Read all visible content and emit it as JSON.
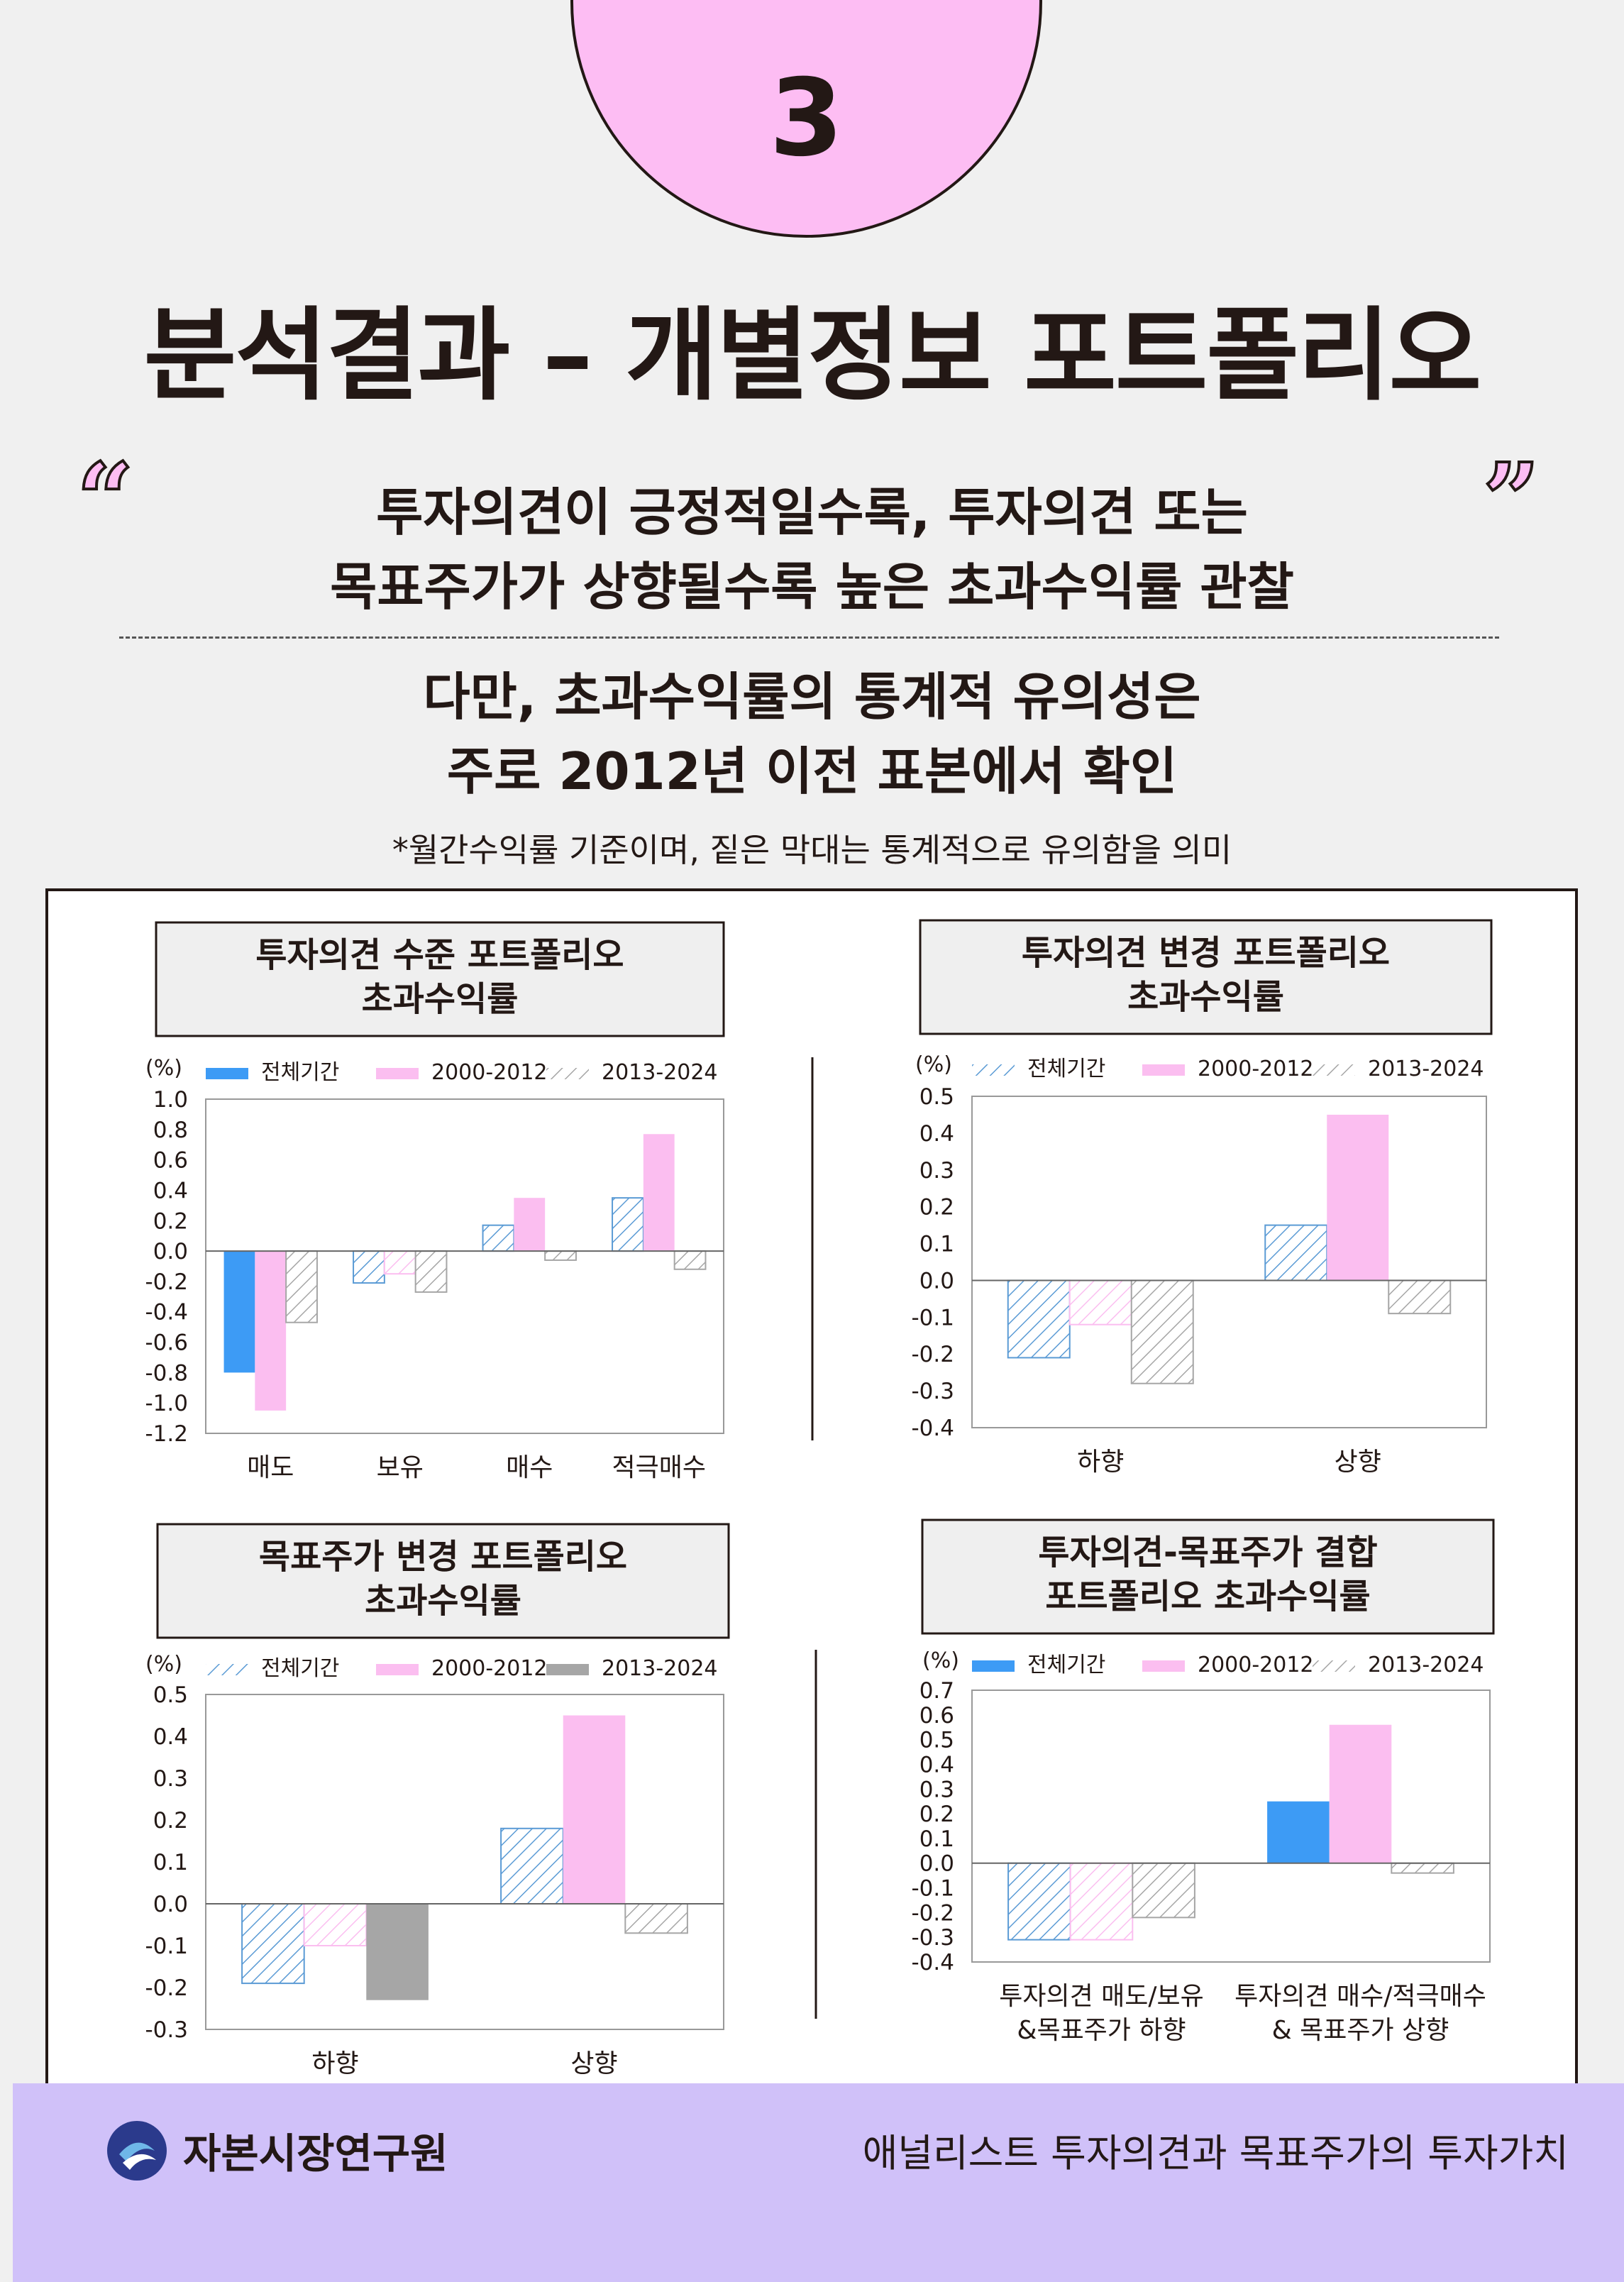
{
  "section_number": "3",
  "page_title": "분석결과 – 개별정보 포트폴리오",
  "quote_open": "“",
  "quote_close": "”",
  "headline": {
    "line1": "투자의견이 긍정적일수록, 투자의견 또는",
    "line2": "목표주가가 상향될수록 높은 초과수익률 관찰"
  },
  "subheadline": {
    "line1": "다만, 초과수익률의 통계적 유의성은",
    "line2": "주로 2012년 이전 표본에서 확인"
  },
  "note": "*월간수익률 기준이며, 짙은 막대는 통계적으로 유의함을 의미",
  "colors": {
    "blue": "#3d9bf5",
    "pink": "#fbbef0",
    "gray": "#a6a6a6",
    "hatch_blue": "#5b9bd5",
    "hatch_gray": "#a6a6a6",
    "hatch_pink": "#fbbef0",
    "footer": "#d0c1f9",
    "circle": "#fdbdf3"
  },
  "chart_data": [
    {
      "type": "bar",
      "title": "투자의견 수준 포트폴리오 초과수익률",
      "title_lines": [
        "투자의견 수준 포트폴리오",
        "초과수익률"
      ],
      "unit": "(%)",
      "categories": [
        "매도",
        "보유",
        "매수",
        "적극매수"
      ],
      "ylim": [
        -1.2,
        1.0
      ],
      "yticks": [
        "1.0",
        "0.8",
        "0.6",
        "0.4",
        "0.2",
        "0.0",
        "-0.2",
        "-0.4",
        "-0.6",
        "-0.8",
        "-1.0",
        "-1.2"
      ],
      "legend": [
        "전체기간",
        "2000-2012",
        "2013-2024"
      ],
      "legend_styles": [
        "blue",
        "pink",
        "hatch_gray"
      ],
      "series": [
        {
          "name": "전체기간",
          "values": [
            -0.8,
            -0.21,
            0.17,
            0.35
          ],
          "styles": [
            "blue",
            "hatch_blue",
            "hatch_blue",
            "hatch_blue"
          ]
        },
        {
          "name": "2000-2012",
          "values": [
            -1.05,
            -0.15,
            0.35,
            0.77
          ],
          "styles": [
            "pink",
            "hatch_pink",
            "pink",
            "pink"
          ]
        },
        {
          "name": "2013-2024",
          "values": [
            -0.47,
            -0.27,
            -0.06,
            -0.12
          ],
          "styles": [
            "hatch_gray",
            "hatch_gray",
            "hatch_gray",
            "hatch_gray"
          ]
        }
      ]
    },
    {
      "type": "bar",
      "title": "투자의견 변경 포트폴리오 초과수익률",
      "title_lines": [
        "투자의견 변경 포트폴리오",
        "초과수익률"
      ],
      "unit": "(%)",
      "categories": [
        "하향",
        "상향"
      ],
      "ylim": [
        -0.4,
        0.5
      ],
      "yticks": [
        "0.5",
        "0.4",
        "0.3",
        "0.2",
        "0.1",
        "0.0",
        "-0.1",
        "-0.2",
        "-0.3",
        "-0.4"
      ],
      "legend": [
        "전체기간",
        "2000-2012",
        "2013-2024"
      ],
      "legend_styles": [
        "hatch_blue",
        "pink",
        "hatch_gray"
      ],
      "series": [
        {
          "name": "전체기간",
          "values": [
            -0.21,
            0.15
          ],
          "styles": [
            "hatch_blue",
            "hatch_blue"
          ]
        },
        {
          "name": "2000-2012",
          "values": [
            -0.12,
            0.45
          ],
          "styles": [
            "hatch_pink",
            "pink"
          ]
        },
        {
          "name": "2013-2024",
          "values": [
            -0.28,
            -0.09
          ],
          "styles": [
            "hatch_gray",
            "hatch_gray"
          ]
        }
      ]
    },
    {
      "type": "bar",
      "title": "목표주가 변경 포트폴리오 초과수익률",
      "title_lines": [
        "목표주가 변경 포트폴리오",
        "초과수익률"
      ],
      "unit": "(%)",
      "categories": [
        "하향",
        "상향"
      ],
      "ylim": [
        -0.3,
        0.5
      ],
      "yticks": [
        "0.5",
        "0.4",
        "0.3",
        "0.2",
        "0.1",
        "0.0",
        "-0.1",
        "-0.2",
        "-0.3"
      ],
      "legend": [
        "전체기간",
        "2000-2012",
        "2013-2024"
      ],
      "legend_styles": [
        "hatch_blue",
        "pink",
        "gray"
      ],
      "series": [
        {
          "name": "전체기간",
          "values": [
            -0.19,
            0.18
          ],
          "styles": [
            "hatch_blue",
            "hatch_blue"
          ]
        },
        {
          "name": "2000-2012",
          "values": [
            -0.1,
            0.45
          ],
          "styles": [
            "hatch_pink",
            "pink"
          ]
        },
        {
          "name": "2013-2024",
          "values": [
            -0.23,
            -0.07
          ],
          "styles": [
            "gray",
            "hatch_gray"
          ]
        }
      ]
    },
    {
      "type": "bar",
      "title": "투자의견-목표주가 결합 포트폴리오 초과수익률",
      "title_lines": [
        "투자의견-목표주가 결합",
        "포트폴리오 초과수익률"
      ],
      "unit": "(%)",
      "categories": [
        "투자의견 매도/보유\n&목표주가 하향",
        "투자의견 매수/적극매수\n& 목표주가 상향"
      ],
      "ylim": [
        -0.4,
        0.7
      ],
      "yticks": [
        "0.7",
        "0.6",
        "0.5",
        "0.4",
        "0.3",
        "0.2",
        "0.1",
        "0.0",
        "-0.1",
        "-0.2",
        "-0.3",
        "-0.4"
      ],
      "legend": [
        "전체기간",
        "2000-2012",
        "2013-2024"
      ],
      "legend_styles": [
        "blue",
        "pink",
        "hatch_gray"
      ],
      "series": [
        {
          "name": "전체기간",
          "values": [
            -0.31,
            0.25
          ],
          "styles": [
            "hatch_blue",
            "blue"
          ]
        },
        {
          "name": "2000-2012",
          "values": [
            -0.31,
            0.56
          ],
          "styles": [
            "hatch_pink",
            "pink"
          ]
        },
        {
          "name": "2013-2024",
          "values": [
            -0.22,
            -0.04
          ],
          "styles": [
            "hatch_gray",
            "hatch_gray"
          ]
        }
      ]
    }
  ],
  "footer": {
    "org_name": "자본시장연구원",
    "report_title": "애널리스트 투자의견과 목표주가의 투자가치"
  }
}
